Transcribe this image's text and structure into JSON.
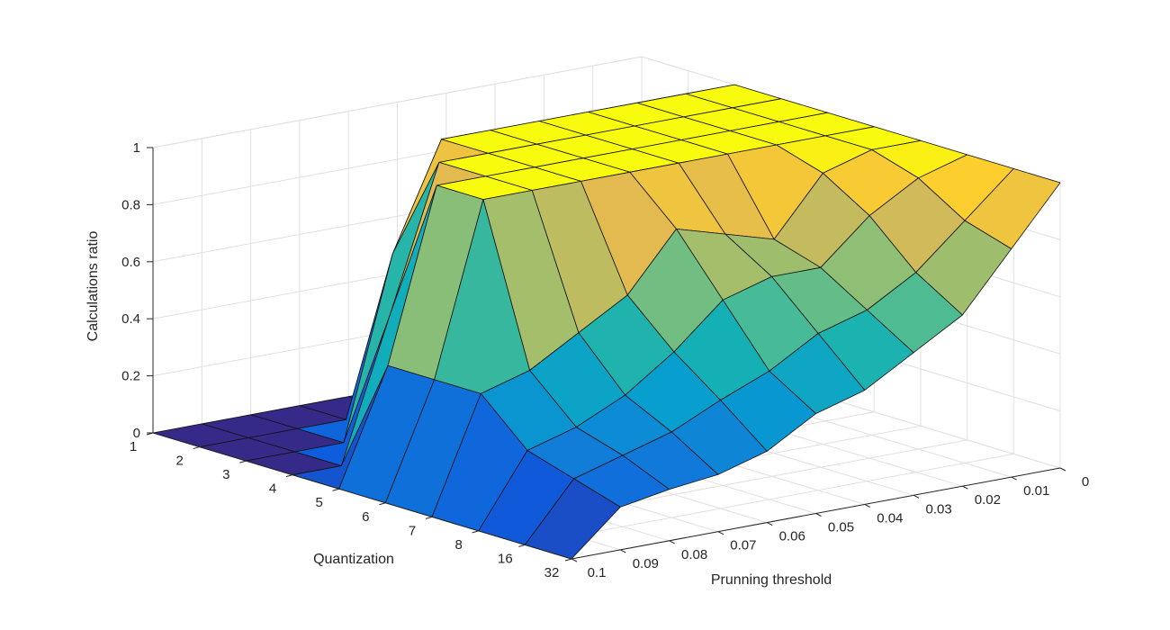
{
  "chart_data": {
    "type": "surface",
    "title": "",
    "xlabel": "Quantization",
    "ylabel": "Prunning threshold",
    "zlabel": "Calculations ratio",
    "x_tick_labels": [
      "1",
      "2",
      "3",
      "4",
      "5",
      "6",
      "7",
      "8",
      "16",
      "32"
    ],
    "y_ticks": [
      0,
      0.01,
      0.02,
      0.03,
      0.04,
      0.05,
      0.06,
      0.07,
      0.08,
      0.09,
      0.1
    ],
    "y_tick_labels": [
      "0",
      "0.01",
      "0.02",
      "0.03",
      "0.04",
      "0.05",
      "0.06",
      "0.07",
      "0.08",
      "0.09",
      "0.1"
    ],
    "z_ticks": [
      0,
      0.2,
      0.4,
      0.6,
      0.8,
      1
    ],
    "z_tick_labels": [
      "0",
      "0.2",
      "0.4",
      "0.6",
      "0.8",
      "1"
    ],
    "zlim": [
      0,
      1
    ],
    "grid": true,
    "colormap": "parula",
    "z": [
      [
        0.0,
        0.0,
        0.0,
        0.0,
        0.0,
        0.0,
        0.0,
        0.0,
        0.0,
        0.0,
        0.0
      ],
      [
        0.0,
        0.0,
        0.0,
        0.0,
        0.0,
        0.0,
        0.0,
        0.0,
        0.0,
        0.0,
        0.0
      ],
      [
        1.0,
        1.0,
        1.0,
        1.0,
        1.0,
        1.0,
        1.0,
        0.63,
        0.0,
        0.0,
        0.0
      ],
      [
        1.0,
        1.0,
        1.0,
        1.0,
        1.0,
        1.0,
        1.0,
        1.0,
        0.5,
        0.0,
        0.0
      ],
      [
        1.0,
        1.0,
        1.0,
        1.0,
        1.0,
        1.0,
        1.0,
        1.0,
        1.0,
        0.4,
        0.0
      ],
      [
        1.0,
        1.0,
        1.0,
        1.0,
        1.0,
        1.0,
        1.0,
        1.0,
        1.0,
        0.4,
        0.0
      ],
      [
        1.0,
        1.0,
        0.95,
        0.75,
        0.8,
        0.85,
        0.65,
        0.55,
        0.45,
        0.4,
        0.0
      ],
      [
        1.0,
        0.95,
        0.85,
        0.7,
        0.7,
        0.65,
        0.5,
        0.38,
        0.3,
        0.25,
        0.0
      ],
      [
        1.0,
        0.85,
        0.7,
        0.6,
        0.55,
        0.45,
        0.38,
        0.3,
        0.25,
        0.2,
        0.0
      ],
      [
        1.0,
        0.8,
        0.6,
        0.5,
        0.4,
        0.35,
        0.25,
        0.2,
        0.18,
        0.15,
        0.0
      ]
    ]
  }
}
